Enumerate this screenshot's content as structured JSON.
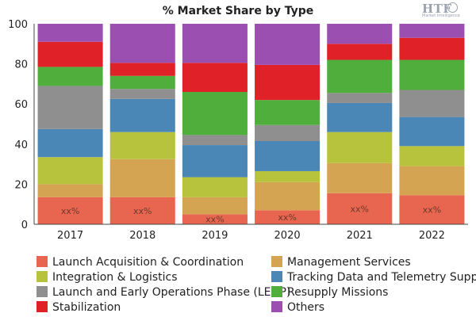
{
  "title": "% Market Share by Type",
  "logo": {
    "main": "HTF",
    "sub": "Market Intelligence"
  },
  "chart_data": {
    "type": "bar",
    "stacked": true,
    "categories": [
      "2017",
      "2018",
      "2019",
      "2020",
      "2021",
      "2022"
    ],
    "ylim": [
      0,
      100
    ],
    "yticks": [
      0,
      20,
      40,
      60,
      80,
      100
    ],
    "grid": false,
    "legend_position": "bottom",
    "bar_label": "xx%",
    "series": [
      {
        "name": "Launch Acquisition & Coordination",
        "color": "#e8664f",
        "values": [
          13.5,
          13.5,
          5,
          7,
          15.5,
          14.5
        ]
      },
      {
        "name": "Management Services",
        "color": "#d4a453",
        "values": [
          6.5,
          19,
          8.5,
          14,
          15,
          14.5
        ]
      },
      {
        "name": "Integration & Logistics",
        "color": "#b8c33d",
        "values": [
          13.5,
          13.5,
          10,
          5.5,
          15.5,
          10
        ]
      },
      {
        "name": "Tracking Data and Telemetry Support",
        "color": "#4a87b6",
        "values": [
          14,
          16.5,
          16,
          15,
          14.5,
          14.5
        ]
      },
      {
        "name": "Launch and Early Operations Phase (LEOP)",
        "color": "#8f8f8f",
        "values": [
          21.5,
          5,
          5,
          8,
          5,
          13.5
        ]
      },
      {
        "name": "Resupply Missions",
        "color": "#4fae3c",
        "values": [
          9.5,
          6.5,
          21.5,
          12.5,
          16.5,
          15
        ]
      },
      {
        "name": "Stabilization",
        "color": "#e02127",
        "values": [
          12.5,
          6.5,
          14.5,
          17.5,
          8,
          11
        ]
      },
      {
        "name": "Others",
        "color": "#9b4fb0",
        "values": [
          9,
          19.5,
          19.5,
          20.5,
          10,
          7
        ]
      }
    ]
  }
}
